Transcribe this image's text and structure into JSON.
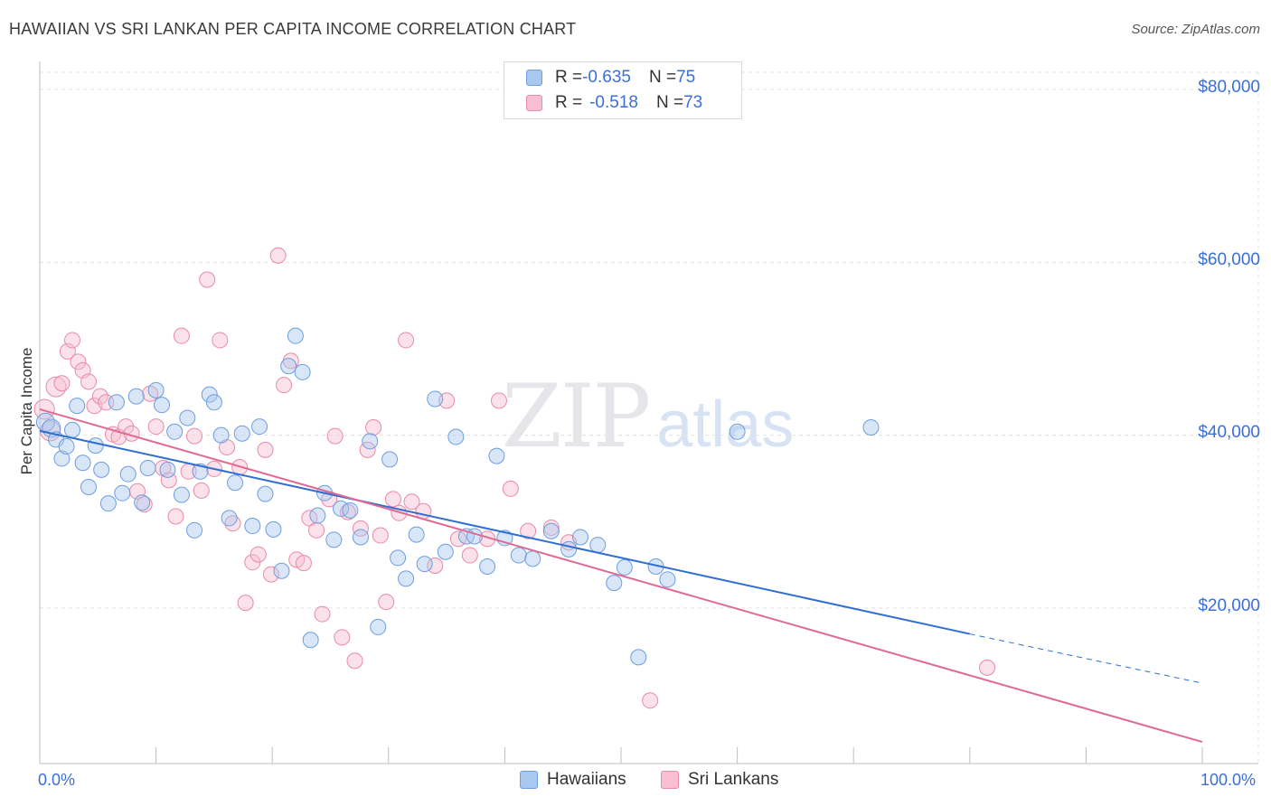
{
  "title": "HAWAIIAN VS SRI LANKAN PER CAPITA INCOME CORRELATION CHART",
  "source": "Source: ZipAtlas.com",
  "watermark": {
    "zip": "ZIP",
    "atlas": "atlas"
  },
  "legend_top": {
    "rows": [
      {
        "r_label": "R = ",
        "r_value": "-0.635",
        "n_label": "N = ",
        "n_value": "75",
        "color": "#a9c8f0",
        "border": "#6c9ee0"
      },
      {
        "r_label": "R = ",
        "r_value": "-0.518",
        "n_label": "N = ",
        "n_value": "73",
        "color": "#f7bfd1",
        "border": "#e88aa8"
      }
    ]
  },
  "chart_data": {
    "type": "scatter",
    "title": "HAWAIIAN VS SRI LANKAN PER CAPITA INCOME CORRELATION CHART",
    "xlabel": "",
    "ylabel": "Per Capita Income",
    "xlim": [
      0,
      100
    ],
    "ylim": [
      2000,
      82000
    ],
    "x_tick_labels": [
      "0.0%",
      "100.0%"
    ],
    "y_ticks": [
      20000,
      40000,
      60000,
      80000
    ],
    "y_tick_labels": [
      "$20,000",
      "$40,000",
      "$60,000",
      "$80,000"
    ],
    "grid": true,
    "legend": "bottom",
    "series": [
      {
        "name": "Hawaiians",
        "color": "#a9c8f0",
        "stroke": "#6c9ee0",
        "line_color": "#2f6fd0",
        "trend": {
          "x0": 0,
          "y0": 40500,
          "x1": 80,
          "y1": 17000,
          "dashed_to_x": 100,
          "dashed_to_y": 11300
        },
        "x": [
          0.5,
          1.0,
          1.4,
          1.9,
          2.3,
          2.8,
          3.2,
          3.7,
          4.2,
          4.8,
          5.3,
          5.9,
          6.6,
          7.1,
          7.6,
          8.3,
          8.8,
          9.3,
          10.0,
          10.5,
          11.0,
          11.6,
          12.2,
          12.7,
          13.3,
          13.8,
          14.6,
          15.0,
          15.6,
          16.3,
          16.8,
          17.4,
          18.3,
          18.9,
          19.4,
          20.1,
          20.8,
          21.4,
          22.0,
          22.6,
          23.3,
          23.9,
          24.5,
          25.3,
          25.9,
          26.7,
          27.6,
          28.4,
          29.1,
          30.1,
          30.8,
          31.5,
          32.4,
          33.1,
          34.0,
          34.9,
          35.8,
          36.7,
          37.4,
          38.5,
          39.3,
          40.0,
          41.2,
          42.4,
          44.0,
          45.5,
          46.5,
          48.0,
          49.4,
          50.3,
          51.5,
          53.0,
          54.0,
          60.0,
          71.5
        ]
      },
      {
        "name": "Sri Lankans",
        "color": "#f7bfd1",
        "stroke": "#e88aa8",
        "line_color": "#e06a93",
        "trend": {
          "x0": 0,
          "y0": 43000,
          "x1": 100,
          "y1": 4500
        },
        "x": [
          0.4,
          0.9,
          1.4,
          1.9,
          2.4,
          2.8,
          3.3,
          3.7,
          4.2,
          4.7,
          5.2,
          5.7,
          6.3,
          6.8,
          7.4,
          7.9,
          8.4,
          9.0,
          9.5,
          10.0,
          10.6,
          11.1,
          11.7,
          12.2,
          12.8,
          13.3,
          13.9,
          14.4,
          15.0,
          15.5,
          16.1,
          16.6,
          17.2,
          17.7,
          18.3,
          18.8,
          19.4,
          19.9,
          20.5,
          21.0,
          21.6,
          22.1,
          22.7,
          23.2,
          23.8,
          24.3,
          24.9,
          25.4,
          26.0,
          26.5,
          27.1,
          27.6,
          28.2,
          28.7,
          29.3,
          29.8,
          30.4,
          30.9,
          31.5,
          32.0,
          33.0,
          34.0,
          35.0,
          36.0,
          37.0,
          38.5,
          39.5,
          40.5,
          42.0,
          44.0,
          45.5,
          52.5,
          81.5
        ]
      }
    ]
  },
  "bottom_legend": [
    {
      "label": "Hawaiians",
      "color": "#a9c8f0",
      "border": "#6c9ee0"
    },
    {
      "label": "Sri Lankans",
      "color": "#f7bfd1",
      "border": "#e88aa8"
    }
  ]
}
